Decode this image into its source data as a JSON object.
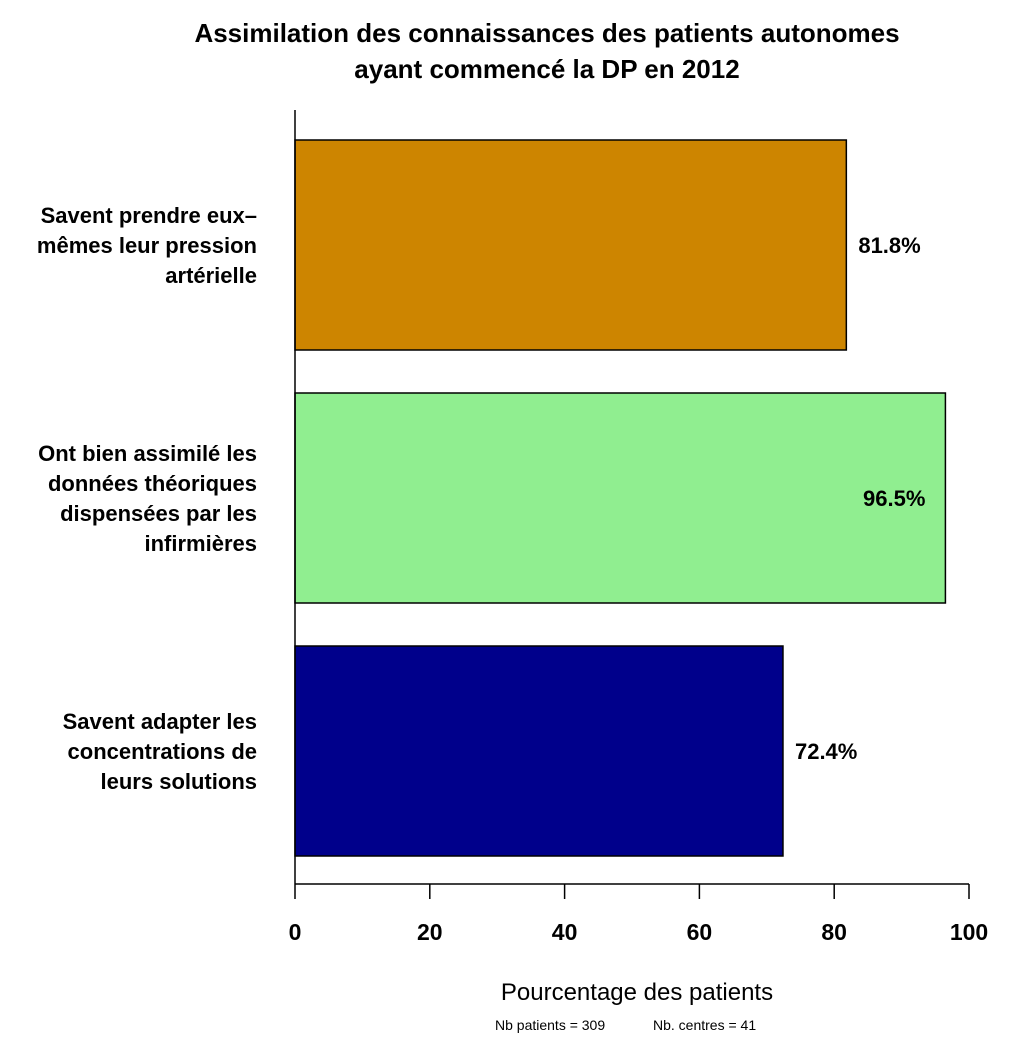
{
  "chart_data": {
    "type": "bar",
    "orientation": "horizontal",
    "title": [
      "Assimilation des connaissances des patients autonomes",
      "ayant commencé la DP en 2012"
    ],
    "xlabel": "Pourcentage des patients",
    "ylabel": "",
    "xlim": [
      0,
      100
    ],
    "xticks": [
      "0",
      "20",
      "40",
      "60",
      "80",
      "100"
    ],
    "grid": false,
    "categories": [
      [
        "Savent prendre eux–",
        "mêmes leur pression",
        "artérielle"
      ],
      [
        "Ont bien assimilé les",
        "données théoriques",
        "dispensées par les",
        "infirmières"
      ],
      [
        "Savent adapter les",
        "concentrations de",
        "leurs solutions"
      ]
    ],
    "values": [
      81.8,
      96.5,
      72.4
    ],
    "data_labels": [
      "81.8%",
      "96.5%",
      "72.4%"
    ],
    "colors": [
      "#CD8500",
      "#90EE90",
      "#00008B"
    ],
    "footnote": {
      "patients": "Nb patients =  309",
      "centres": "Nb. centres =  41"
    }
  }
}
